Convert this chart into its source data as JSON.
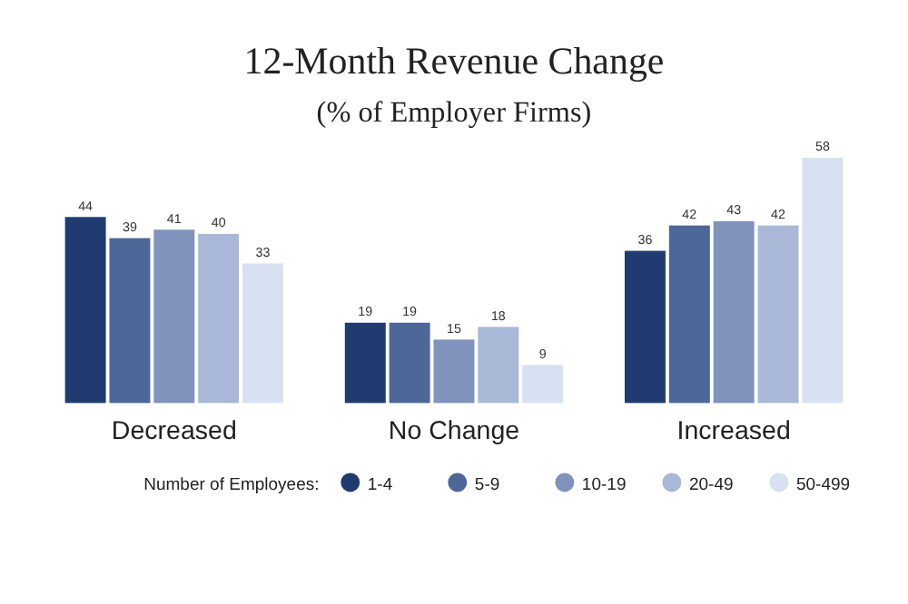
{
  "chart_data": {
    "type": "bar",
    "title": "12-Month Revenue Change",
    "subtitle": "(% of Employer Firms)",
    "categories": [
      "Decreased",
      "No Change",
      "Increased"
    ],
    "legend_title": "Number of Employees:",
    "legend": "bottom",
    "data_labels": true,
    "series": [
      {
        "name": "1-4",
        "color": "#1f3b70",
        "values": [
          44,
          19,
          36
        ]
      },
      {
        "name": "5-9",
        "color": "#4c6798",
        "values": [
          39,
          19,
          42
        ]
      },
      {
        "name": "10-19",
        "color": "#7f93bd",
        "values": [
          41,
          15,
          43
        ]
      },
      {
        "name": "20-49",
        "color": "#a9b8d7",
        "values": [
          40,
          18,
          42
        ]
      },
      {
        "name": "50-499",
        "color": "#d7e1f1",
        "values": [
          33,
          9,
          58
        ]
      }
    ]
  }
}
